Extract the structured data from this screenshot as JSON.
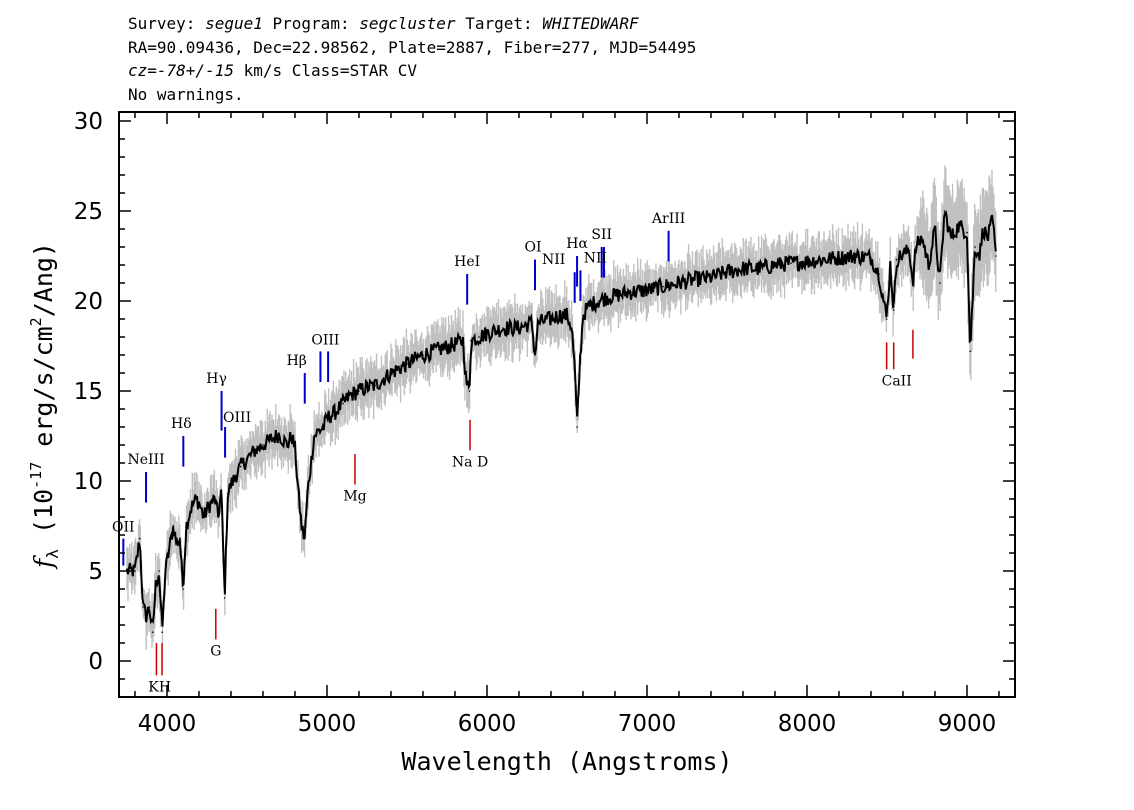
{
  "header": {
    "survey_label": "Survey:",
    "survey": "segue1",
    "program_label": "Program:",
    "program": "segcluster",
    "target_label": "Target:",
    "target": "WHITEDWARF",
    "line2": "RA=90.09436, Dec=22.98562, Plate=2887, Fiber=277, MJD=54495",
    "cz": "cz=-78+/-15",
    "line3_rest": " km/s Class=STAR CV",
    "line4": "No warnings."
  },
  "chart_data": {
    "type": "line",
    "xlabel": "Wavelength (Angstroms)",
    "ylabel": "f_λ (10^-17 erg/s/cm²/Ang)",
    "xlim": [
      3700,
      9300
    ],
    "ylim": [
      -2,
      30.5
    ],
    "xticks": [
      4000,
      5000,
      6000,
      7000,
      8000,
      9000
    ],
    "yticks": [
      0,
      5,
      10,
      15,
      20,
      25,
      30
    ],
    "colors": {
      "flux": "#000000",
      "error_band": "#c0c0c0",
      "emission": "#0000cc",
      "absorption": "#cc0000"
    },
    "series": [
      {
        "x": [
          3750,
          3800,
          3830,
          3850,
          3870,
          3890,
          3910,
          3930,
          3950,
          3970,
          3990,
          4010,
          4040,
          4060,
          4080,
          4100,
          4120,
          4150,
          4180,
          4200,
          4230,
          4260,
          4280,
          4300,
          4320,
          4340,
          4360,
          4380,
          4400,
          4430,
          4460,
          4500,
          4550,
          4600,
          4650,
          4700,
          4750,
          4780,
          4800,
          4820,
          4840,
          4860,
          4880,
          4900,
          4920,
          4950,
          4980,
          5000,
          5050,
          5100,
          5150,
          5200,
          5250,
          5300,
          5400,
          5500,
          5600,
          5700,
          5800,
          5850,
          5870,
          5890,
          5900,
          5950,
          6000,
          6100,
          6200,
          6280,
          6300,
          6320,
          6400,
          6450,
          6500,
          6530,
          6550,
          6563,
          6580,
          6600,
          6620,
          6650,
          6700,
          6750,
          6800,
          6900,
          7000,
          7100,
          7200,
          7300,
          7400,
          7500,
          7600,
          7700,
          7800,
          7900,
          8000,
          8100,
          8200,
          8300,
          8400,
          8450,
          8498,
          8520,
          8542,
          8560,
          8600,
          8640,
          8662,
          8680,
          8720,
          8760,
          8800,
          8830,
          8860,
          8900,
          8950,
          9000,
          9020,
          9050,
          9080,
          9100,
          9130,
          9160,
          9180
        ],
        "y": [
          5.0,
          5.0,
          6.8,
          3.0,
          2.5,
          3.0,
          1.6,
          4.2,
          5.0,
          1.6,
          5.0,
          6.0,
          7.5,
          6.5,
          6.8,
          4.0,
          7.5,
          8.5,
          9.0,
          8.8,
          8.0,
          8.6,
          8.8,
          9.0,
          8.0,
          9.5,
          3.5,
          9.3,
          9.8,
          10.3,
          10.8,
          11.2,
          11.7,
          12.0,
          12.3,
          12.6,
          12.0,
          12.5,
          11.8,
          9.5,
          7.5,
          6.8,
          9.5,
          11.0,
          12.5,
          12.8,
          13.0,
          13.5,
          13.8,
          14.3,
          14.8,
          15.0,
          15.2,
          15.3,
          16.0,
          16.5,
          17.0,
          17.3,
          17.6,
          17.8,
          15.5,
          15.0,
          17.8,
          18.0,
          18.2,
          18.5,
          18.5,
          18.8,
          17.0,
          18.8,
          19.0,
          19.2,
          19.2,
          18.5,
          16.0,
          13.0,
          16.5,
          19.2,
          19.5,
          19.8,
          20.0,
          20.2,
          20.3,
          20.5,
          20.6,
          20.8,
          21.0,
          21.2,
          21.3,
          21.6,
          21.8,
          21.8,
          22.0,
          22.1,
          22.2,
          22.3,
          22.4,
          22.5,
          22.4,
          21.5,
          19.0,
          22.0,
          19.5,
          22.3,
          22.6,
          22.8,
          21.0,
          23.0,
          23.5,
          22.0,
          24.0,
          21.0,
          25.0,
          23.5,
          24.2,
          23.8,
          17.2,
          23.0,
          22.6,
          24.0,
          23.5,
          24.5,
          22.5
        ]
      }
    ],
    "emission_lines": [
      {
        "label": "OII",
        "wavelength": 3727,
        "flux_lo": 5.3,
        "flux_hi": 6.8
      },
      {
        "label": "NeIII",
        "wavelength": 3869,
        "flux_lo": 8.8,
        "flux_hi": 10.5
      },
      {
        "label": "Hδ",
        "wavelength": 4102,
        "flux_lo": 10.8,
        "flux_hi": 12.5
      },
      {
        "label": "Hγ",
        "wavelength": 4341,
        "flux_lo": 12.8,
        "flux_hi": 15.0
      },
      {
        "label": "OIII",
        "wavelength": 4363,
        "flux_lo": 11.3,
        "flux_hi": 13.0
      },
      {
        "label": "Hβ",
        "wavelength": 4861,
        "flux_lo": 14.3,
        "flux_hi": 16.0
      },
      {
        "label": "OIII",
        "wavelength": 4959,
        "flux_lo": 15.5,
        "flux_hi": 17.2
      },
      {
        "label": "OIII",
        "wavelength": 5007,
        "flux_lo": 15.5,
        "flux_hi": 17.2
      },
      {
        "label": "HeI",
        "wavelength": 5876,
        "flux_lo": 19.8,
        "flux_hi": 21.5
      },
      {
        "label": "OI",
        "wavelength": 6300,
        "flux_lo": 20.6,
        "flux_hi": 22.3
      },
      {
        "label": "NII",
        "wavelength": 6548,
        "flux_lo": 19.9,
        "flux_hi": 21.6
      },
      {
        "label": "Hα",
        "wavelength": 6563,
        "flux_lo": 20.8,
        "flux_hi": 22.5
      },
      {
        "label": "NII",
        "wavelength": 6584,
        "flux_lo": 20.0,
        "flux_hi": 21.7
      },
      {
        "label": "SII",
        "wavelength": 6717,
        "flux_lo": 21.3,
        "flux_hi": 23.0
      },
      {
        "label": "SII",
        "wavelength": 6731,
        "flux_lo": 21.3,
        "flux_hi": 23.0
      },
      {
        "label": "ArIII",
        "wavelength": 7135,
        "flux_lo": 22.2,
        "flux_hi": 23.9
      }
    ],
    "absorption_lines": [
      {
        "label": "K",
        "wavelength": 3934,
        "flux_lo": -0.8,
        "flux_hi": 1.0
      },
      {
        "label": "H",
        "wavelength": 3969,
        "flux_lo": -0.8,
        "flux_hi": 1.0
      },
      {
        "label": "G",
        "wavelength": 4305,
        "flux_lo": 1.2,
        "flux_hi": 2.9
      },
      {
        "label": "Mg",
        "wavelength": 5175,
        "flux_lo": 9.8,
        "flux_hi": 11.5
      },
      {
        "label": "Na D",
        "wavelength": 5894,
        "flux_lo": 11.7,
        "flux_hi": 13.4
      },
      {
        "label": "CaII",
        "wavelength": 8498,
        "flux_lo": 16.2,
        "flux_hi": 17.7
      },
      {
        "label": "CaII",
        "wavelength": 8542,
        "flux_lo": 16.2,
        "flux_hi": 17.7
      },
      {
        "label": "CaII",
        "wavelength": 8662,
        "flux_lo": 16.8,
        "flux_hi": 18.4
      }
    ]
  }
}
